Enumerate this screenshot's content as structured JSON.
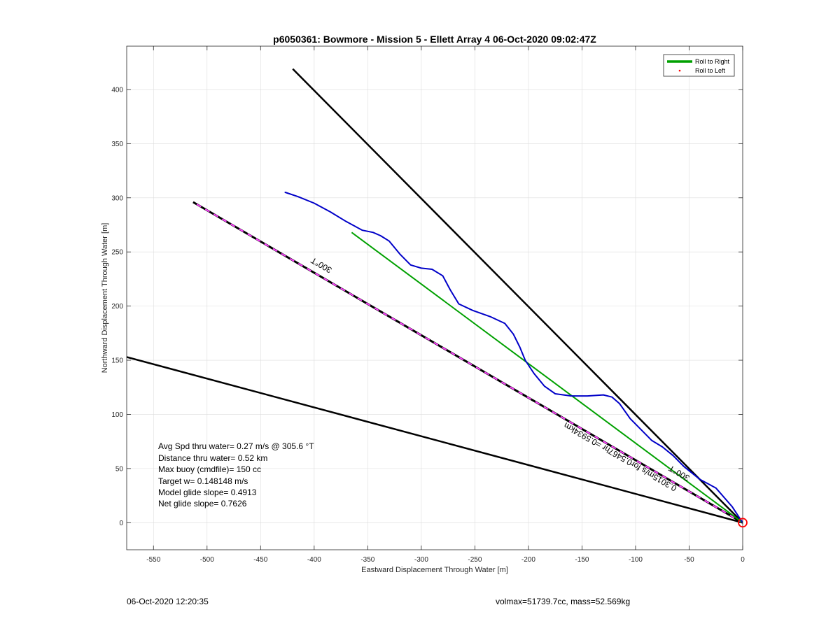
{
  "chart_data": {
    "type": "line",
    "title": "p6050361: Bowmore - Mission 5 - Ellett Array 4 06-Oct-2020 09:02:47Z",
    "xlabel": "Eastward Displacement Through Water [m]",
    "ylabel": "Northward Displacement Through Water [m]",
    "xlim": [
      -575,
      0
    ],
    "ylim": [
      -25,
      440
    ],
    "xticks": [
      -550,
      -500,
      -450,
      -400,
      -350,
      -300,
      -250,
      -200,
      -150,
      -100,
      -50,
      0
    ],
    "yticks": [
      0,
      50,
      100,
      150,
      200,
      250,
      300,
      350,
      400
    ],
    "grid": true,
    "legend": {
      "position": "top-right",
      "entries": [
        {
          "label": "Roll to Right",
          "color": "#00a000",
          "style": "line"
        },
        {
          "label": "Roll to Left",
          "color": "#ff0000",
          "style": "dot"
        }
      ]
    },
    "series": [
      {
        "role": "envelope",
        "color": "#000000",
        "x": [
          0,
          -420
        ],
        "y": [
          0,
          419
        ]
      },
      {
        "role": "envelope",
        "color": "#000000",
        "x": [
          0,
          -575
        ],
        "y": [
          0,
          153
        ]
      },
      {
        "role": "target-heading",
        "color": "#000000",
        "dash_color": "#ff40ff",
        "x": [
          0,
          -513
        ],
        "y": [
          0,
          296
        ]
      },
      {
        "name": "Roll to Right",
        "color": "#00a000",
        "x": [
          0,
          -365
        ],
        "y": [
          0,
          268
        ]
      },
      {
        "role": "track",
        "color": "#0000c8",
        "x": [
          0,
          -10,
          -25,
          -40,
          -55,
          -65,
          -75,
          -85,
          -95,
          -105,
          -115,
          -122,
          -130,
          -145,
          -160,
          -175,
          -185,
          -195,
          -203,
          -208,
          -214,
          -222,
          -235,
          -252,
          -265,
          -273,
          -280,
          -290,
          -300,
          -310,
          -320,
          -330,
          -338,
          -345,
          -355,
          -370,
          -385,
          -400,
          -415,
          -427
        ],
        "y": [
          0,
          15,
          32,
          40,
          52,
          62,
          70,
          76,
          86,
          96,
          110,
          116,
          118,
          117,
          117,
          119,
          126,
          138,
          150,
          162,
          174,
          184,
          190,
          196,
          202,
          215,
          228,
          234,
          235,
          238,
          248,
          260,
          265,
          268,
          270,
          278,
          287,
          295,
          301,
          305
        ]
      }
    ],
    "annotations": [
      {
        "text": "300°T",
        "x": -392,
        "y": 240,
        "rotation": 210
      },
      {
        "text": "300°T",
        "x": -58,
        "y": 48,
        "rotation": 210
      },
      {
        "text": "0.3015m/s for0.5467hr =0.5934km",
        "x": -113,
        "y": 63,
        "rotation": 210
      }
    ],
    "marker": {
      "x": 0,
      "y": 0,
      "color": "#ff0000",
      "shape": "circle"
    },
    "text_box": [
      "Avg Spd thru water=  0.27 m/s @ 305.6 °T",
      "Distance thru water=  0.52 km",
      "Max buoy (cmdfile)= 150 cc",
      "Target w= 0.148148 m/s",
      "Model glide slope= 0.4913",
      "Net glide slope= 0.7626"
    ]
  },
  "footer": {
    "left": "06-Oct-2020 12:20:35",
    "right": "volmax=51739.7cc, mass=52.569kg"
  }
}
